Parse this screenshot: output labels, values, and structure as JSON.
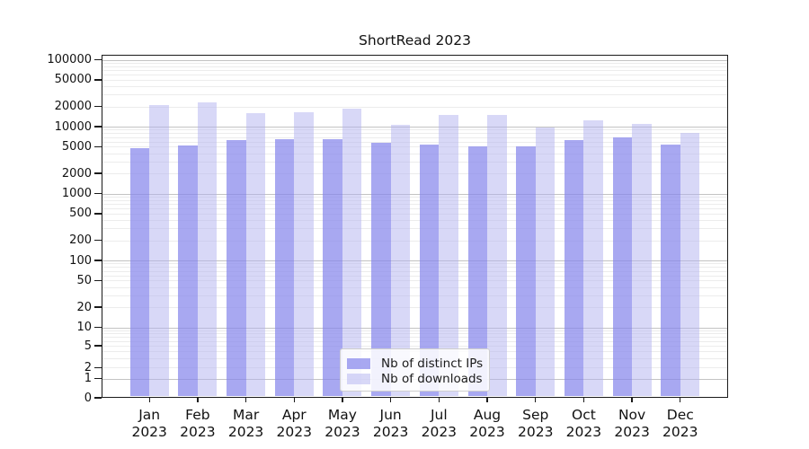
{
  "chart_data": {
    "type": "bar",
    "title": "ShortRead 2023",
    "x_tick_months": [
      "Jan",
      "Feb",
      "Mar",
      "Apr",
      "May",
      "Jun",
      "Jul",
      "Aug",
      "Sep",
      "Oct",
      "Nov",
      "Dec"
    ],
    "x_tick_year": "2023",
    "series": [
      {
        "name": "Nb of distinct IPs",
        "color": "rgba(134,134,236,0.72)",
        "values": [
          4800,
          5300,
          6300,
          6500,
          6500,
          5700,
          5400,
          5000,
          5100,
          6200,
          6900,
          5400
        ]
      },
      {
        "name": "Nb of downloads",
        "color": "rgba(177,177,239,0.5)",
        "values": [
          21000,
          22800,
          16000,
          16200,
          18600,
          10500,
          15000,
          15000,
          9700,
          12500,
          11000,
          8100
        ]
      }
    ],
    "y_axis": {
      "scale": "log-like (symlog near zero)",
      "tick_values": [
        100000,
        50000,
        20000,
        10000,
        5000,
        2000,
        1000,
        500,
        200,
        100,
        50,
        20,
        10,
        5,
        2,
        1,
        0
      ],
      "top_value": 111000
    },
    "x_axis": {
      "label": "",
      "months_count": 12
    },
    "legend": {
      "position": "lower-center"
    },
    "grid": {
      "major_color": "#c3c3c3",
      "minor_color": "#ececec",
      "vertical": false
    },
    "colors": {
      "bar_ips_on_white": "#a8a8f1",
      "bar_downloads_on_white": "#d8d8f7",
      "spine": "#1a1a1a"
    }
  }
}
